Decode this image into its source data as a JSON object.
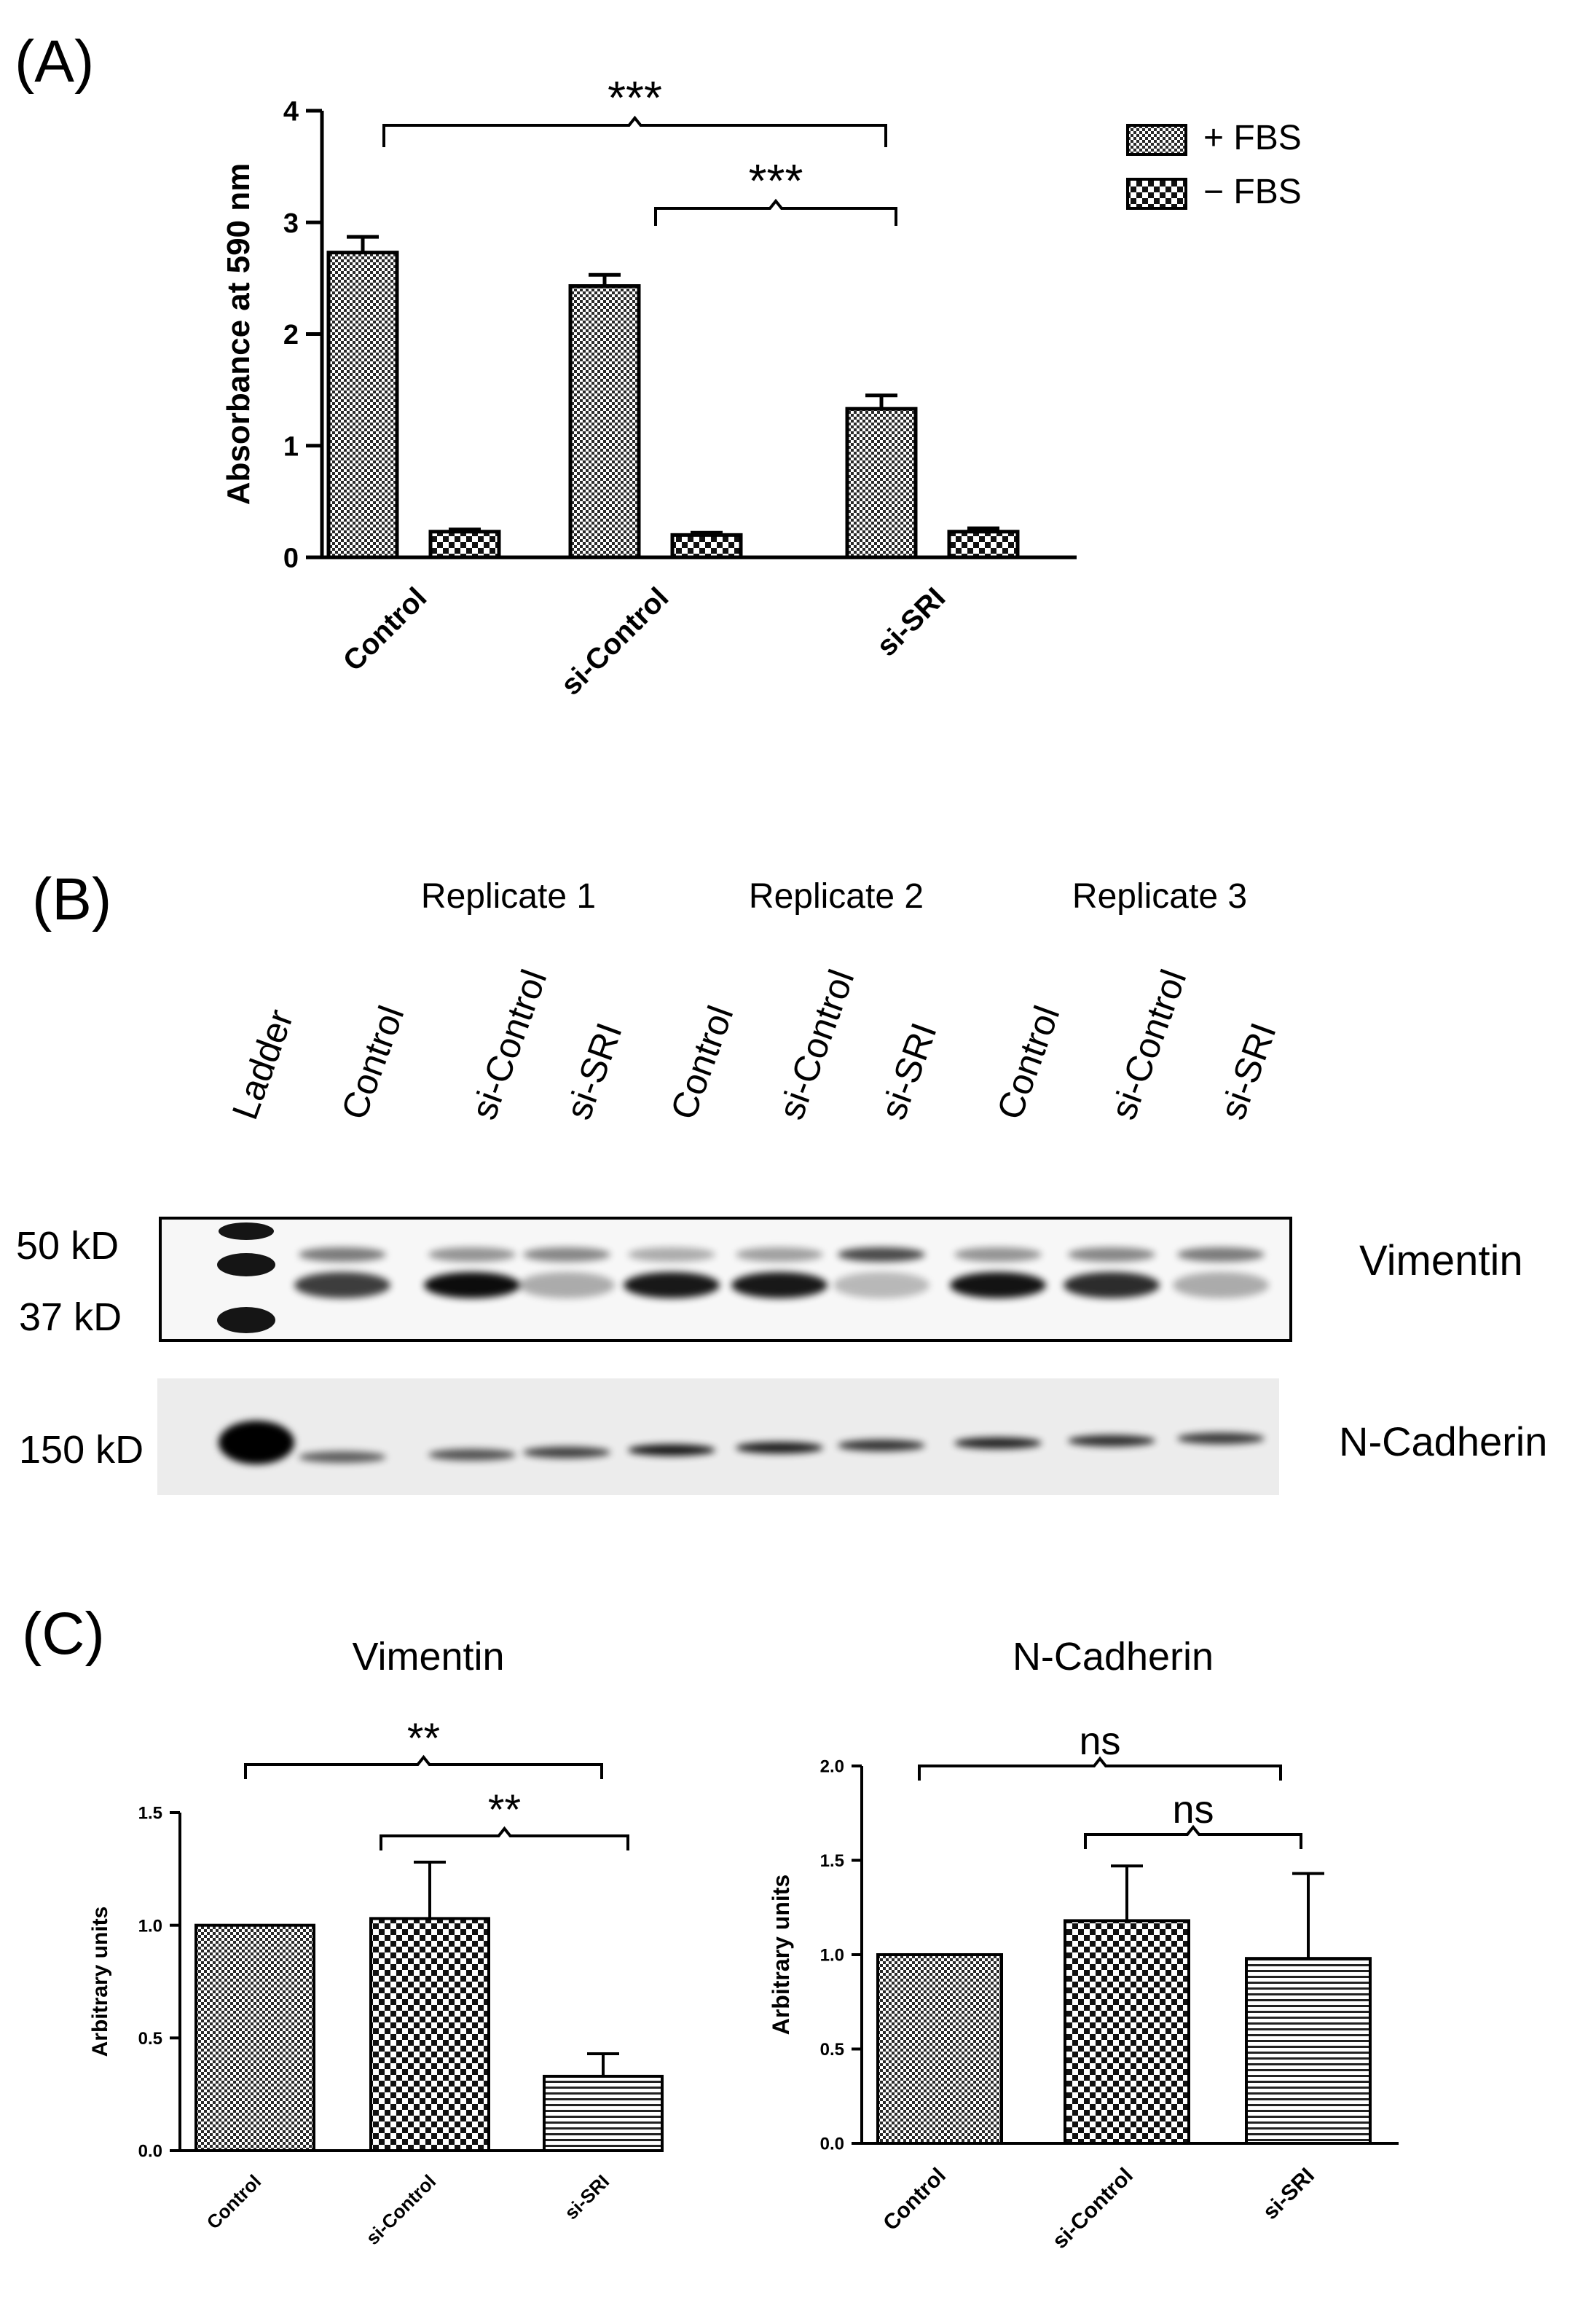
{
  "colors": {
    "ink": "#000000",
    "blot_bg_vimentin": "#f7f7f7",
    "blot_bg_ncad": "#ececec"
  },
  "panels": {
    "a": {
      "label": "(A)"
    },
    "b": {
      "label": "(B)"
    },
    "c": {
      "label": "(C)"
    }
  },
  "chart_data": [
    {
      "id": "A",
      "type": "bar",
      "title": "",
      "xlabel": "",
      "ylabel": "Absorbance at 590 nm",
      "ylim": [
        0,
        4
      ],
      "yticks": [
        "0",
        "1",
        "2",
        "3",
        "4"
      ],
      "categories": [
        "Control",
        "si-Control",
        "si-SRI"
      ],
      "legend": {
        "position": "top-right"
      },
      "series": [
        {
          "name": "+ FBS",
          "pattern": "fine-checker",
          "values": [
            2.73,
            2.43,
            1.33
          ],
          "errors": [
            0.14,
            0.1,
            0.12
          ]
        },
        {
          "name": "− FBS",
          "pattern": "coarse-checker",
          "values": [
            0.23,
            0.2,
            0.23
          ],
          "errors": [
            0.02,
            0.02,
            0.03
          ]
        }
      ],
      "significance": [
        {
          "from": "Control",
          "to": "si-SRI",
          "label": "***"
        },
        {
          "from": "si-Control",
          "to": "si-SRI",
          "label": "***"
        }
      ]
    },
    {
      "id": "C1",
      "type": "bar",
      "title": "Vimentin",
      "xlabel": "",
      "ylabel": "Arbitrary units",
      "ylim": [
        0,
        1.5
      ],
      "yticks": [
        "0.0",
        "0.5",
        "1.0",
        "1.5"
      ],
      "categories": [
        "Control",
        "si-Control",
        "si-SRI"
      ],
      "patterns": [
        "fine-checker",
        "coarse-checker",
        "horizontal-lines"
      ],
      "values": [
        1.0,
        1.03,
        0.33
      ],
      "errors": [
        0,
        0.25,
        0.1
      ],
      "significance": [
        {
          "from": "Control",
          "to": "si-SRI",
          "label": "**"
        },
        {
          "from": "si-Control",
          "to": "si-SRI",
          "label": "**"
        }
      ]
    },
    {
      "id": "C2",
      "type": "bar",
      "title": "N-Cadherin",
      "xlabel": "",
      "ylabel": "Arbitrary units",
      "ylim": [
        0,
        2.0
      ],
      "yticks": [
        "0.0",
        "0.5",
        "1.0",
        "1.5",
        "2.0"
      ],
      "categories": [
        "Control",
        "si-Control",
        "si-SRI"
      ],
      "patterns": [
        "fine-checker",
        "coarse-checker",
        "horizontal-lines"
      ],
      "values": [
        1.0,
        1.18,
        0.98
      ],
      "errors": [
        0,
        0.29,
        0.45
      ],
      "significance": [
        {
          "from": "Control",
          "to": "si-SRI",
          "label": "ns"
        },
        {
          "from": "si-Control",
          "to": "si-SRI",
          "label": "ns"
        }
      ]
    }
  ],
  "blot": {
    "replicates": [
      "Replicate 1",
      "Replicate 2",
      "Replicate 3"
    ],
    "lanes": [
      "Ladder",
      "Control",
      "si-Control",
      "si-SRI",
      "Control",
      "si-Control",
      "si-SRI",
      "Control",
      "si-Control",
      "si-SRI"
    ],
    "vimentin": {
      "name": "Vimentin",
      "markers": [
        "50 kD",
        "37 kD"
      ],
      "lower_band_intensity": [
        0.75,
        0.95,
        0.3,
        0.9,
        0.9,
        0.25,
        0.92,
        0.82,
        0.3
      ],
      "upper_band_intensity": [
        0.5,
        0.4,
        0.45,
        0.3,
        0.35,
        0.7,
        0.4,
        0.45,
        0.5
      ]
    },
    "ncadherin": {
      "name": "N-Cadherin",
      "markers": [
        "150 kD"
      ],
      "band_intensity": [
        0.6,
        0.65,
        0.72,
        0.9,
        0.88,
        0.78,
        0.85,
        0.8,
        0.75
      ]
    }
  }
}
